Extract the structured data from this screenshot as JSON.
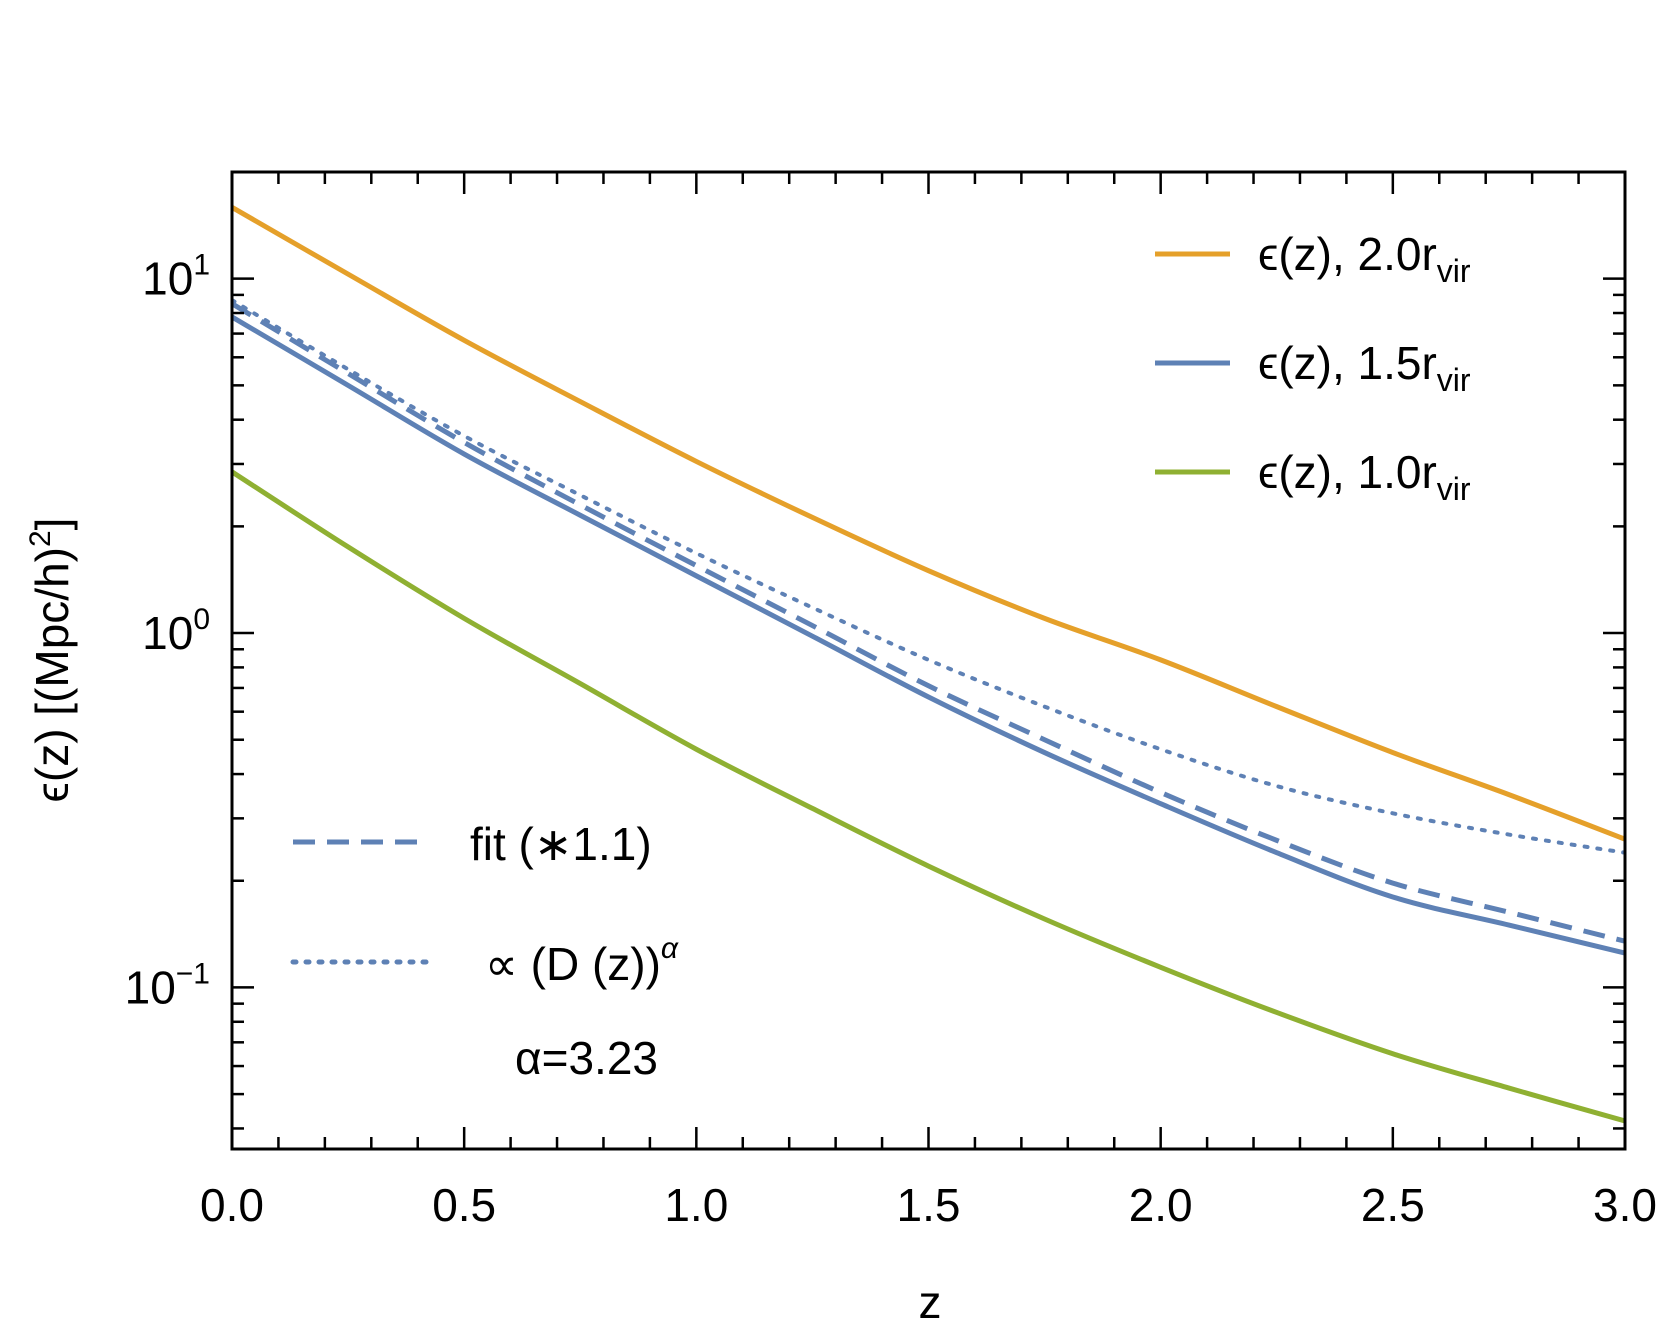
{
  "chart_data": {
    "type": "line",
    "title": "",
    "xlabel": "z",
    "ylabel": "ϵ(z) [(Mpc/h)",
    "ylabel_sup": "2",
    "ylabel_end": "]",
    "xlim": [
      0,
      3
    ],
    "ylim": [
      0.035,
      20
    ],
    "yscale": "log",
    "grid": false,
    "legend_position": "top-right",
    "x_ticks": [
      {
        "value": 0,
        "label": "0.0"
      },
      {
        "value": 0.5,
        "label": "0.5"
      },
      {
        "value": 1.0,
        "label": "1.0"
      },
      {
        "value": 1.5,
        "label": "1.5"
      },
      {
        "value": 2.0,
        "label": "2.0"
      },
      {
        "value": 2.5,
        "label": "2.5"
      },
      {
        "value": 3.0,
        "label": "3.0"
      }
    ],
    "y_ticks": [
      {
        "value": 10,
        "base": "10",
        "exp": "1"
      },
      {
        "value": 1,
        "base": "10",
        "exp": "0"
      },
      {
        "value": 0.1,
        "base": "10",
        "exp": "−1"
      }
    ],
    "series": [
      {
        "name": "ϵ(z), 2.0r",
        "name_sub": "vir",
        "color": "#e5a02a",
        "style": "solid",
        "x": [
          0,
          0.25,
          0.5,
          0.75,
          1.0,
          1.25,
          1.5,
          1.75,
          2.0,
          2.25,
          2.5,
          2.75,
          3.0
        ],
        "y": [
          15.9,
          10.3,
          6.7,
          4.5,
          3.05,
          2.12,
          1.5,
          1.1,
          0.84,
          0.62,
          0.46,
          0.35,
          0.262
        ]
      },
      {
        "name": "ϵ(z), 1.5r",
        "name_sub": "vir",
        "color": "#5e81b5",
        "style": "solid",
        "x": [
          0,
          0.25,
          0.5,
          0.75,
          1.0,
          1.25,
          1.5,
          1.75,
          2.0,
          2.25,
          2.5,
          2.75,
          3.0
        ],
        "y": [
          7.8,
          5.0,
          3.2,
          2.15,
          1.45,
          0.98,
          0.66,
          0.46,
          0.33,
          0.24,
          0.18,
          0.15,
          0.125
        ]
      },
      {
        "name": "ϵ(z), 1.0r",
        "name_sub": "vir",
        "color": "#8fb032",
        "style": "solid",
        "x": [
          0,
          0.25,
          0.5,
          0.75,
          1.0,
          1.25,
          1.5,
          1.75,
          2.0,
          2.25,
          2.5,
          2.75,
          3.0
        ],
        "y": [
          2.85,
          1.75,
          1.1,
          0.72,
          0.47,
          0.32,
          0.22,
          0.156,
          0.114,
          0.085,
          0.065,
          0.052,
          0.042
        ]
      },
      {
        "name": "fit (∗1.1)",
        "color": "#5e81b5",
        "style": "dashed",
        "x": [
          0,
          0.25,
          0.5,
          0.75,
          1.0,
          1.25,
          1.5,
          1.75,
          2.0,
          2.25,
          2.5,
          2.75,
          3.0
        ],
        "y": [
          8.5,
          5.4,
          3.45,
          2.3,
          1.55,
          1.05,
          0.71,
          0.5,
          0.355,
          0.26,
          0.197,
          0.163,
          0.135
        ]
      },
      {
        "name": "∝ (D (z))",
        "name_sup": "α",
        "color": "#5e81b5",
        "style": "dotted",
        "x": [
          0,
          0.25,
          0.5,
          0.75,
          1.0,
          1.25,
          1.5,
          1.75,
          2.0,
          2.25,
          2.5,
          2.75,
          3.0
        ],
        "y": [
          8.7,
          5.55,
          3.6,
          2.45,
          1.68,
          1.18,
          0.84,
          0.62,
          0.47,
          0.37,
          0.31,
          0.27,
          0.24
        ]
      }
    ],
    "annotation": "α=3.23"
  }
}
